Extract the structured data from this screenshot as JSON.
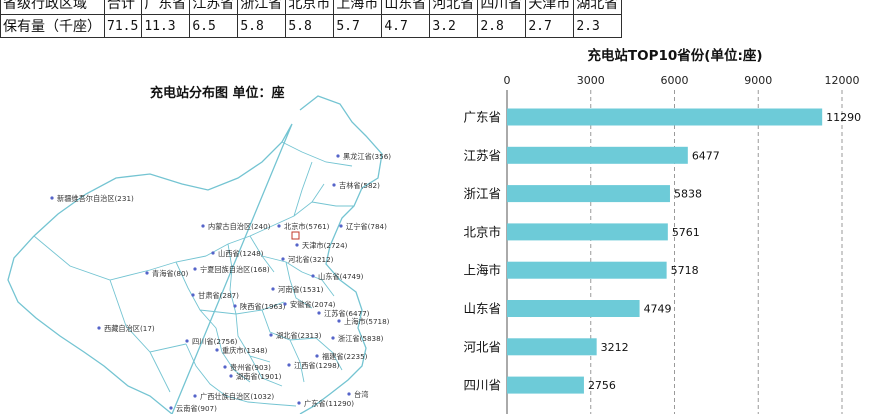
{
  "table": {
    "header": [
      "省级行政区域",
      "合计",
      "广东省",
      "江苏省",
      "浙江省",
      "北京市",
      "上海市",
      "山东省",
      "河北省",
      "四川省",
      "天津市",
      "湖北省"
    ],
    "row_label": "保有量（千座）",
    "values": [
      "71.5",
      "11.3",
      "6.5",
      "5.8",
      "5.8",
      "5.7",
      "4.7",
      "3.2",
      "2.8",
      "2.7",
      "2.3"
    ]
  },
  "map": {
    "title": "充电站分布图  单位：座",
    "labels": [
      "黑龙江省(356)",
      "吉林省(582)",
      "新疆维吾尔自治区(231)",
      "内蒙古自治区(240)",
      "北京市(5761)",
      "辽宁省(784)",
      "天津市(2724)",
      "山西省(1248)",
      "河北省(3212)",
      "宁夏回族自治区(168)",
      "青海省(80)",
      "山东省(4749)",
      "甘肃省(287)",
      "河南省(1531)",
      "陕西省(1963)",
      "安徽省(2074)",
      "江苏省(6477)",
      "上海市(5718)",
      "西藏自治区(17)",
      "湖北省(2313)",
      "四川省(2756)",
      "重庆市(1348)",
      "浙江省(5838)",
      "福建省(2235)",
      "贵州省(903)",
      "湖南省(1901)",
      "江西省(1298)",
      "广西壮族自治区(1032)",
      "广东省(11290)",
      "云南省(907)",
      "台湾"
    ]
  },
  "chart_data": {
    "type": "bar",
    "orientation": "horizontal",
    "title": "充电站TOP10省份(单位:座)",
    "categories": [
      "广东省",
      "江苏省",
      "浙江省",
      "北京市",
      "上海市",
      "山东省",
      "河北省",
      "四川省"
    ],
    "values": [
      11290,
      6477,
      5838,
      5761,
      5718,
      4749,
      3212,
      2756
    ],
    "xlim": [
      0,
      12000
    ],
    "x_ticks": [
      0,
      3000,
      6000,
      9000,
      12000
    ],
    "axis_position": "top",
    "grid": "vertical dashed",
    "bar_color": "#6dcbd8"
  }
}
